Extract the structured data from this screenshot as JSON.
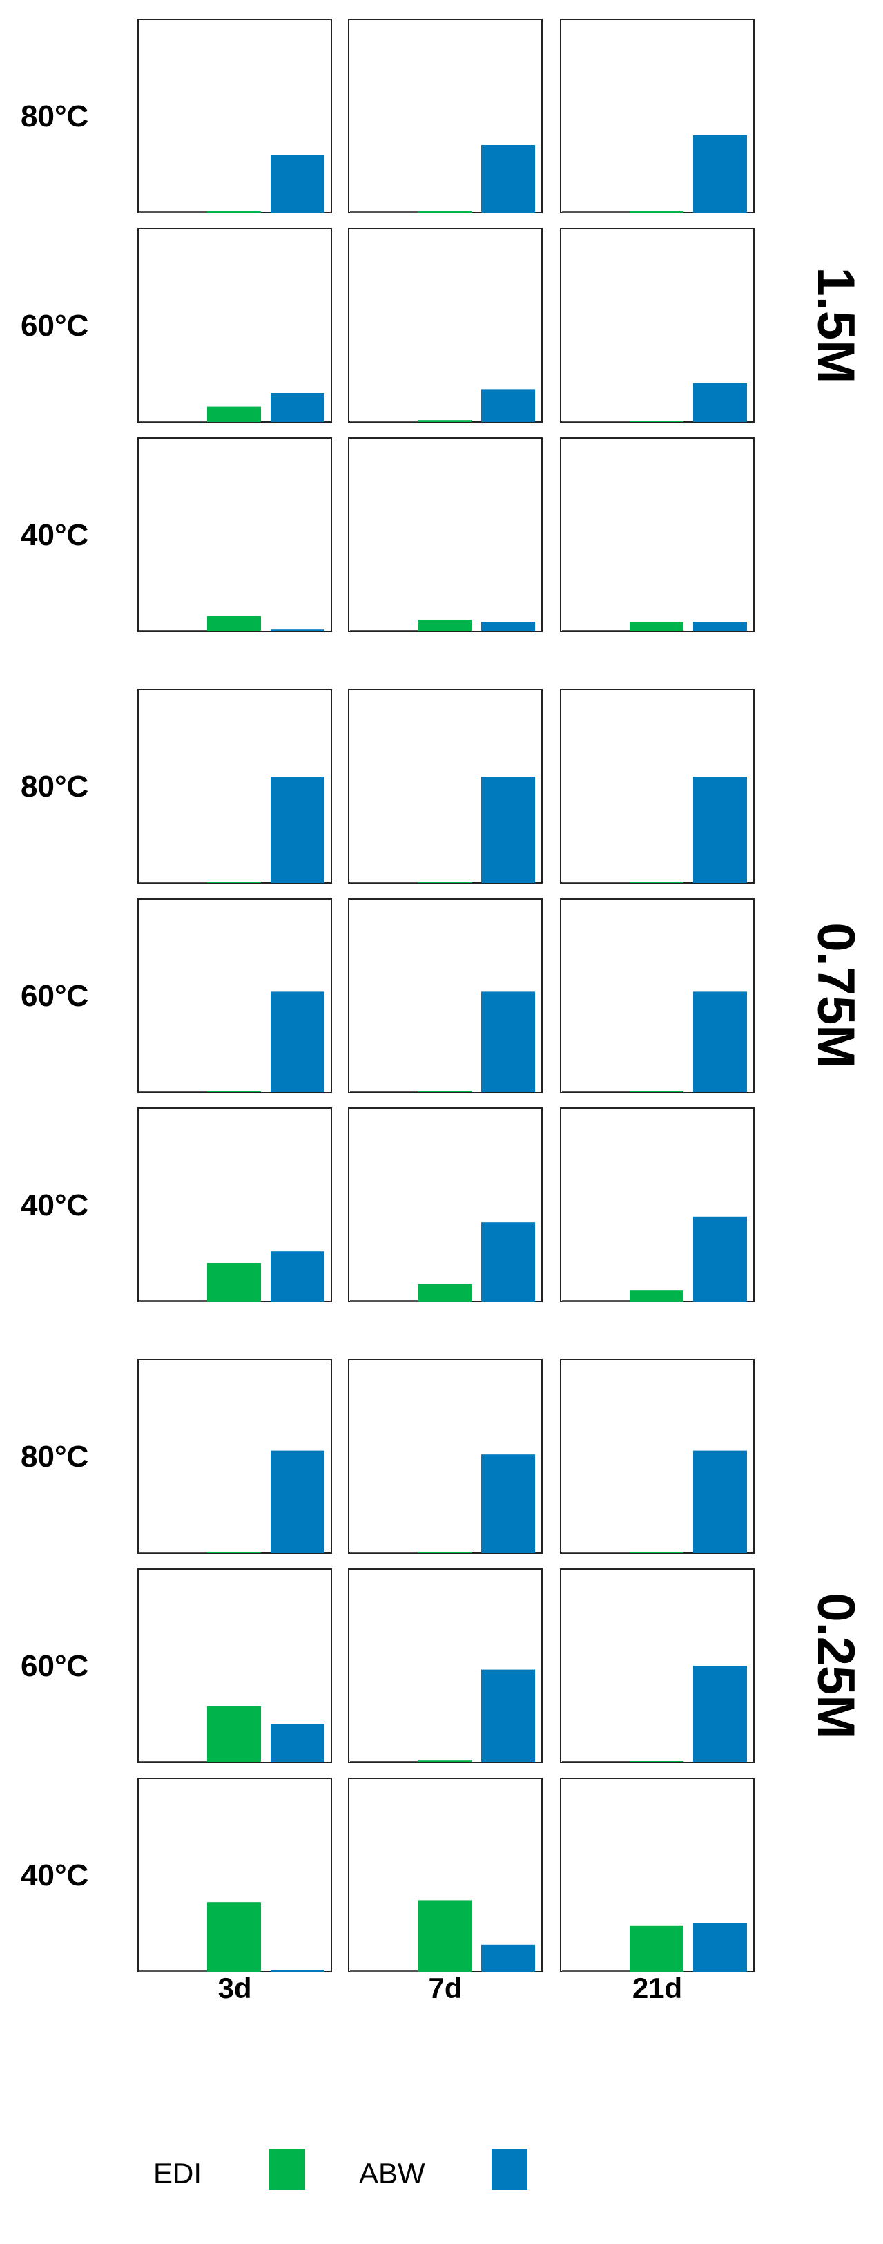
{
  "chart_data": {
    "type": "bar",
    "layout": "small-multiples grid",
    "x_categories": [
      "3d",
      "7d",
      "21d"
    ],
    "series_legend": [
      {
        "name": "EDI",
        "color": "#00b44b"
      },
      {
        "name": "ABW",
        "color": "#0079bd"
      }
    ],
    "ylim": [
      0,
      1
    ],
    "grid": false,
    "legend_placement": "bottom",
    "groups": [
      {
        "label": "1.5M",
        "rows": [
          {
            "label": "80°C",
            "values": {
              "EDI": [
                0.0,
                0.0,
                0.0
              ],
              "ABW": [
                0.3,
                0.35,
                0.4
              ]
            }
          },
          {
            "label": "60°C",
            "values": {
              "EDI": [
                0.08,
                0.01,
                0.0
              ],
              "ABW": [
                0.15,
                0.17,
                0.2
              ]
            }
          },
          {
            "label": "40°C",
            "values": {
              "EDI": [
                0.08,
                0.06,
                0.05
              ],
              "ABW": [
                0.01,
                0.05,
                0.05
              ]
            }
          }
        ]
      },
      {
        "label": "0.75M",
        "rows": [
          {
            "label": "80°C",
            "values": {
              "EDI": [
                0.0,
                0.0,
                0.0
              ],
              "ABW": [
                0.55,
                0.55,
                0.55
              ]
            }
          },
          {
            "label": "60°C",
            "values": {
              "EDI": [
                0.0,
                0.0,
                0.0
              ],
              "ABW": [
                0.52,
                0.52,
                0.52
              ]
            }
          },
          {
            "label": "40°C",
            "values": {
              "EDI": [
                0.2,
                0.09,
                0.06
              ],
              "ABW": [
                0.26,
                0.41,
                0.44
              ]
            }
          }
        ]
      },
      {
        "label": "0.25M",
        "rows": [
          {
            "label": "80°C",
            "values": {
              "EDI": [
                0.0,
                0.0,
                0.0
              ],
              "ABW": [
                0.53,
                0.51,
                0.53
              ]
            }
          },
          {
            "label": "60°C",
            "values": {
              "EDI": [
                0.29,
                0.01,
                0.0
              ],
              "ABW": [
                0.2,
                0.48,
                0.5
              ]
            }
          },
          {
            "label": "40°C",
            "values": {
              "EDI": [
                0.36,
                0.37,
                0.24
              ],
              "ABW": [
                0.01,
                0.14,
                0.25
              ]
            }
          }
        ]
      }
    ]
  }
}
